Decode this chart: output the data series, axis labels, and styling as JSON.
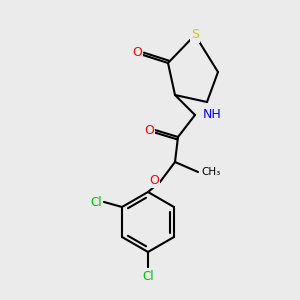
{
  "bg_color": "#ebebeb",
  "bond_color": "#000000",
  "bond_width": 1.5,
  "atom_colors": {
    "S": "#cccc00",
    "N": "#0000ff",
    "O": "#ff0000",
    "Cl": "#00bb00",
    "C": "#000000"
  },
  "font_size": 8,
  "label_font_size": 7.5
}
